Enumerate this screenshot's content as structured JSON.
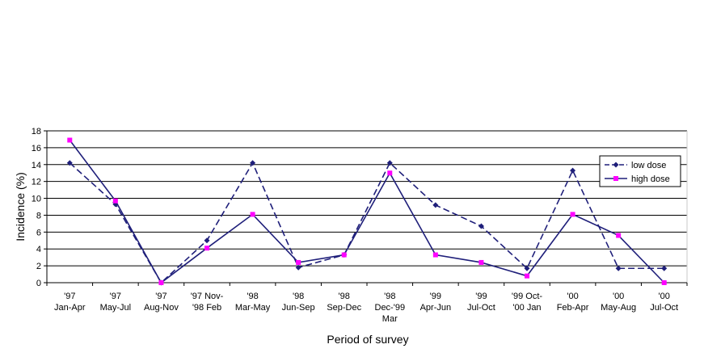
{
  "chart_data": {
    "type": "line",
    "title": "",
    "xlabel": "Period of survey",
    "ylabel": "Incidence (%)",
    "ylim": [
      0,
      18
    ],
    "yticks": [
      0,
      2,
      4,
      6,
      8,
      10,
      12,
      14,
      16,
      18
    ],
    "grid": true,
    "legend_position": "right",
    "categories": [
      [
        "'97",
        "Jan-Apr"
      ],
      [
        "'97",
        "May-Jul"
      ],
      [
        "'97",
        "Aug-Nov"
      ],
      [
        "'97 Nov-",
        "'98 Feb"
      ],
      [
        "'98",
        "Mar-May"
      ],
      [
        "'98",
        "Jun-Sep"
      ],
      [
        "'98",
        "Sep-Dec"
      ],
      [
        "'98",
        "Dec-'99",
        "Mar"
      ],
      [
        "'99",
        "Apr-Jun"
      ],
      [
        "'99",
        "Jul-Oct"
      ],
      [
        "'99 Oct-",
        "'00 Jan"
      ],
      [
        "'00",
        "Feb-Apr"
      ],
      [
        "'00",
        "May-Aug"
      ],
      [
        "'00",
        "Jul-Oct"
      ]
    ],
    "series": [
      {
        "name": "low dose",
        "color": "#1f1f7a",
        "line_style": "dashed",
        "marker": "diamond",
        "values": [
          14.2,
          9.3,
          0,
          5,
          14.2,
          1.8,
          3.3,
          14.2,
          9.2,
          6.7,
          1.7,
          13.3,
          1.7,
          1.7
        ]
      },
      {
        "name": "high dose",
        "color": "#1f1f7a",
        "marker_color": "#ff00ff",
        "line_style": "solid",
        "marker": "square",
        "values": [
          16.9,
          9.7,
          0,
          4.1,
          8.1,
          2.4,
          3.3,
          13,
          3.3,
          2.4,
          0.8,
          8.1,
          5.6,
          0
        ]
      }
    ]
  }
}
